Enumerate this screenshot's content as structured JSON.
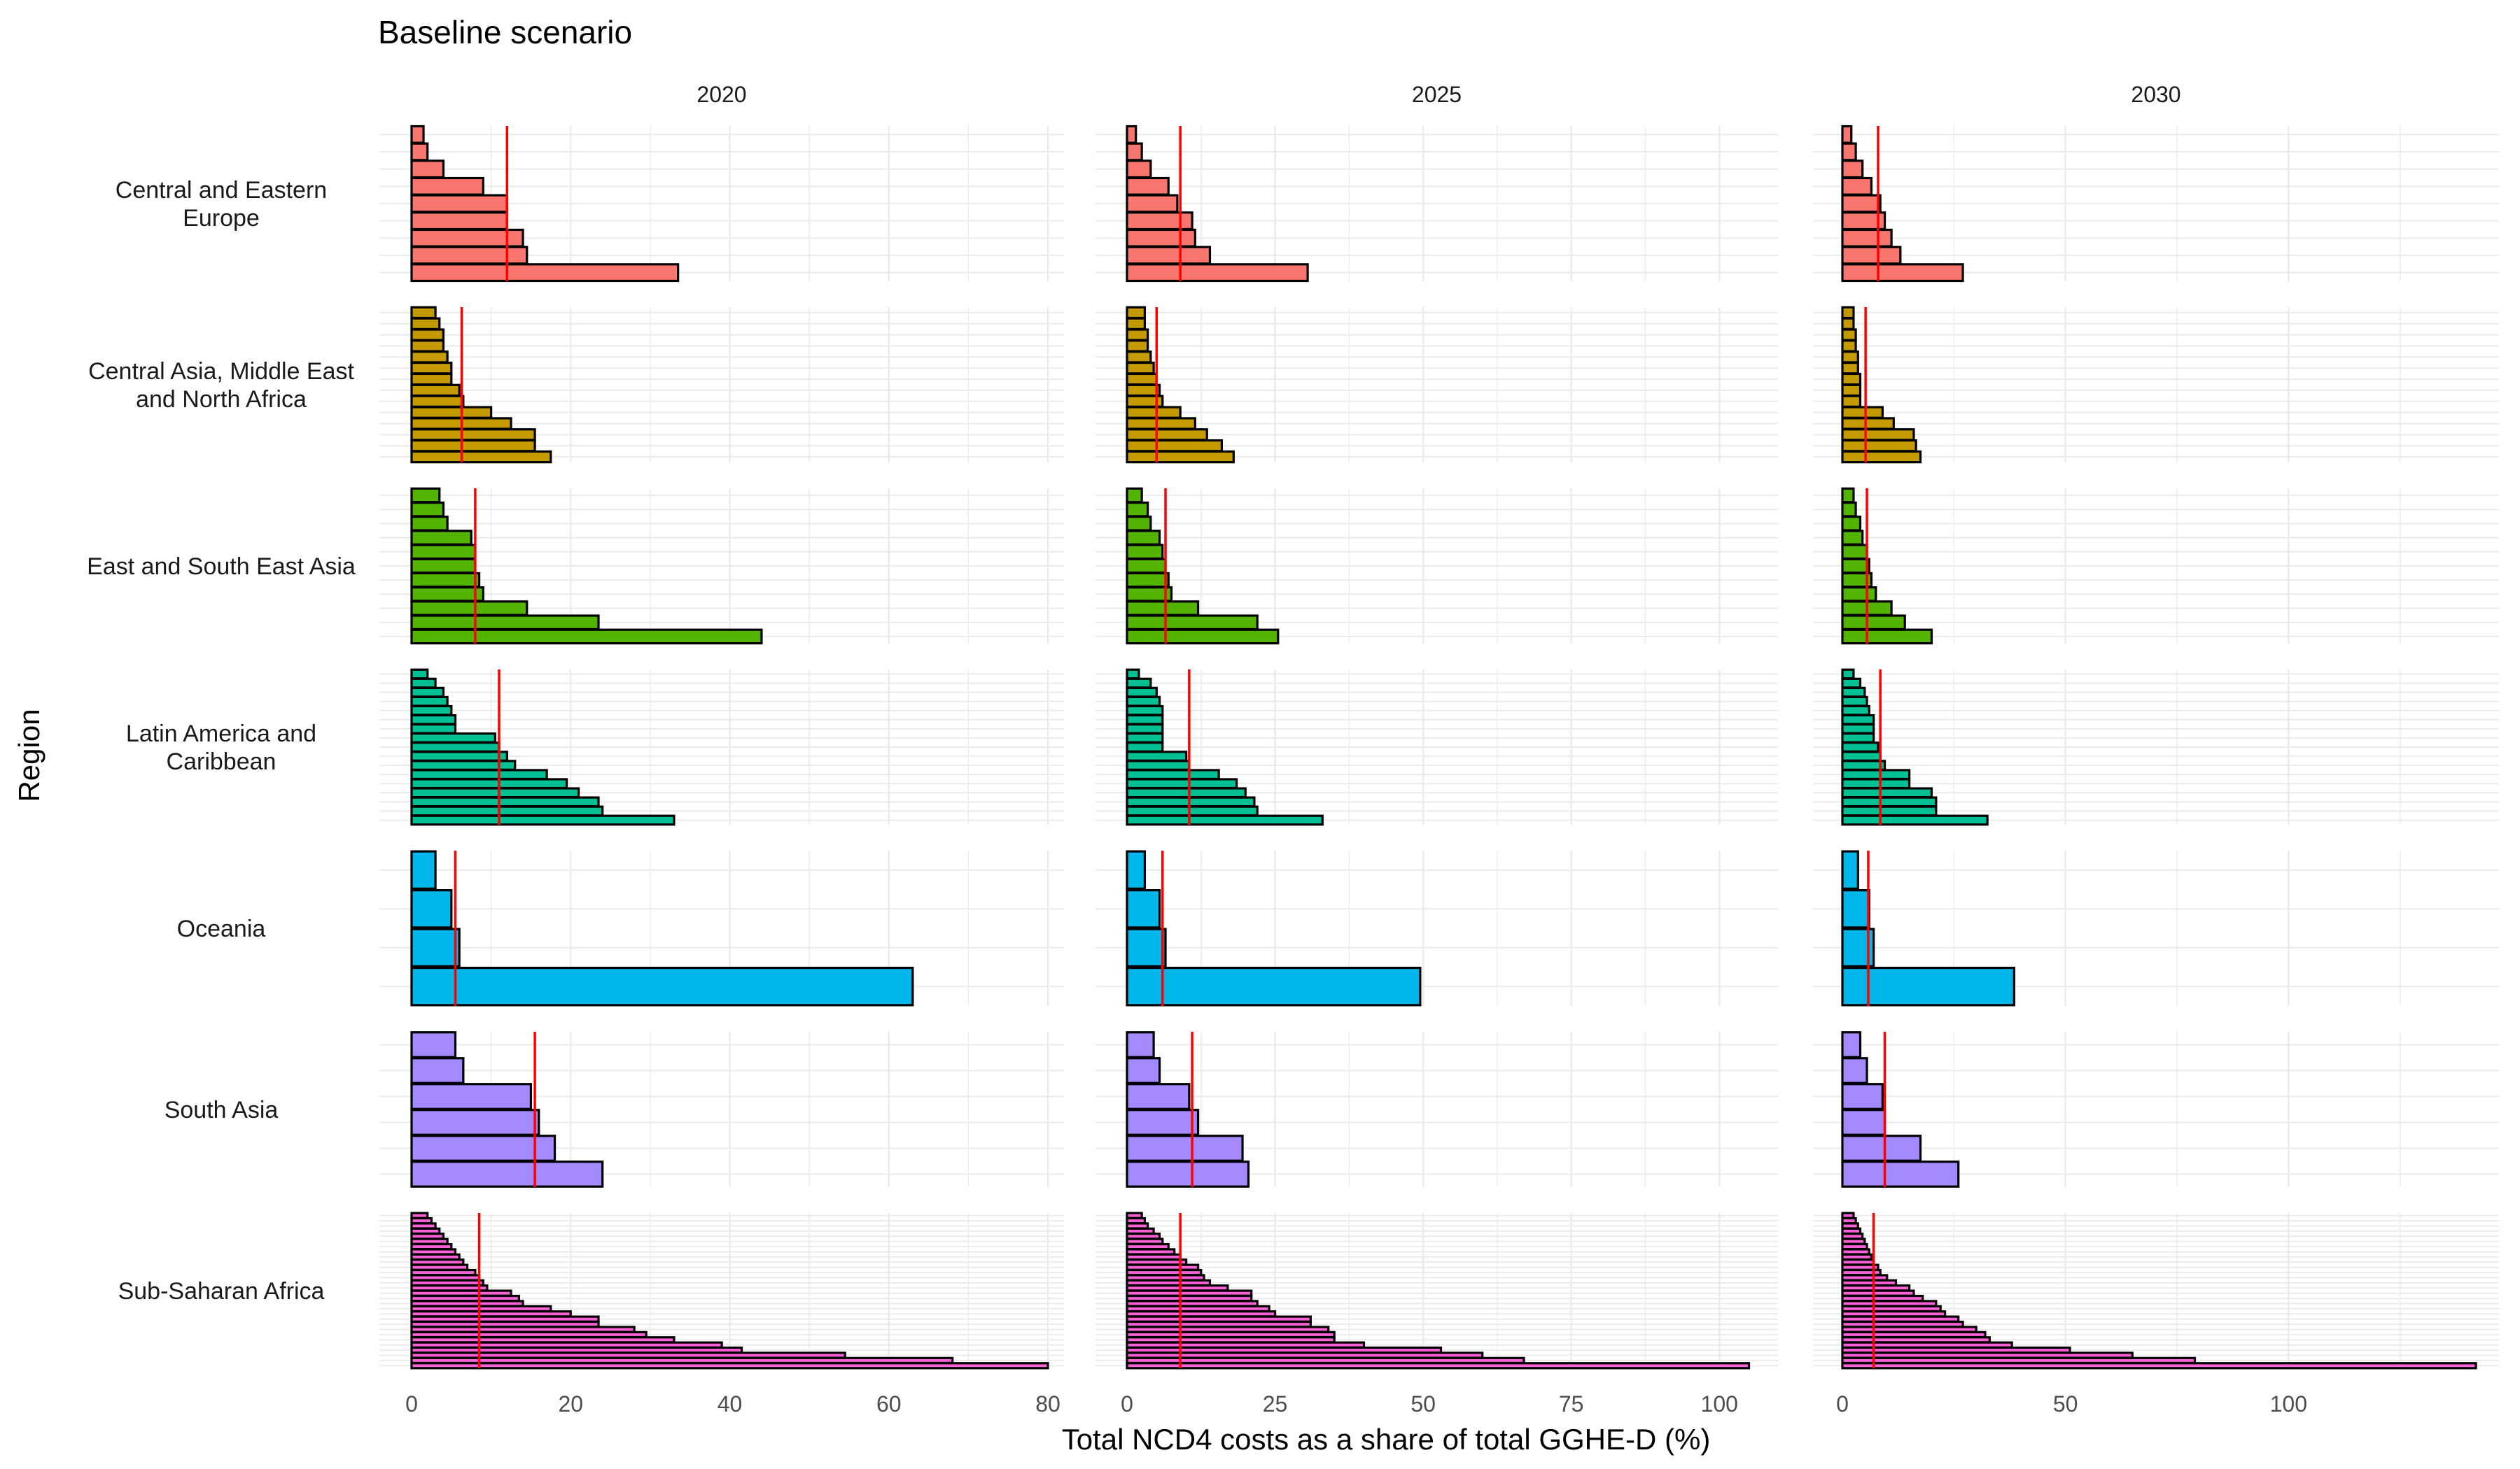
{
  "chart_data": {
    "type": "bar",
    "orientation": "horizontal",
    "title": "Baseline scenario",
    "xlabel": "Total NCD4 costs as a share of total GGHE-D (%)",
    "ylabel": "Region",
    "columns": [
      "2020",
      "2025",
      "2030"
    ],
    "xlims": [
      [
        0,
        80
      ],
      [
        0,
        106
      ],
      [
        0,
        142
      ]
    ],
    "xticks": [
      [
        0,
        20,
        40,
        60,
        80
      ],
      [
        0,
        25,
        50,
        75,
        100
      ],
      [
        0,
        50,
        100
      ]
    ],
    "grid": true,
    "legend": "none",
    "mean_line_color": "#ff0000",
    "bar_outline_color": "#000000",
    "regions": [
      {
        "label": "Central and Eastern\nEurope",
        "color": "#F8766D",
        "panels": [
          {
            "values": [
              33.5,
              14.5,
              14,
              12,
              12,
              9,
              4,
              2,
              1.5
            ],
            "mean": 12
          },
          {
            "values": [
              30.5,
              14,
              11.5,
              11,
              8.5,
              7,
              4,
              2.5,
              1.5
            ],
            "mean": 9
          },
          {
            "values": [
              27,
              13,
              11,
              9.5,
              8.5,
              6.5,
              4.5,
              3,
              2
            ],
            "mean": 8
          }
        ]
      },
      {
        "label": "Central Asia, Middle East\nand North Africa",
        "color": "#C49A00",
        "panels": [
          {
            "values": [
              17.5,
              15.5,
              15.5,
              12.5,
              10,
              6.5,
              6,
              5,
              5,
              4.5,
              4,
              4,
              3.5,
              3
            ],
            "mean": 6.3
          },
          {
            "values": [
              18,
              16,
              13.5,
              11.5,
              9,
              6,
              5.5,
              5,
              4.5,
              4,
              3.5,
              3.5,
              3,
              3
            ],
            "mean": 5
          },
          {
            "values": [
              17.5,
              16.5,
              16,
              11.5,
              9,
              4,
              4,
              4,
              3.5,
              3.5,
              3,
              3,
              2.5,
              2.5
            ],
            "mean": 5.2
          }
        ]
      },
      {
        "label": "East and South East Asia",
        "color": "#53B400",
        "panels": [
          {
            "values": [
              44,
              23.5,
              14.5,
              9,
              8.5,
              8,
              8,
              7.5,
              4.5,
              4,
              3.5
            ],
            "mean": 8
          },
          {
            "values": [
              25.5,
              22,
              12,
              7.5,
              7,
              6.5,
              6,
              5.5,
              4,
              3.5,
              2.5
            ],
            "mean": 6.5
          },
          {
            "values": [
              20,
              14,
              11,
              7.5,
              6.5,
              6,
              5.5,
              4.5,
              4,
              3,
              2.5
            ],
            "mean": 5.5
          }
        ]
      },
      {
        "label": "Latin America and\nCaribbean",
        "color": "#00C094",
        "panels": [
          {
            "values": [
              33,
              24,
              23.5,
              21,
              19.5,
              17,
              13,
              12,
              11,
              10.5,
              5.5,
              5.5,
              5,
              4.5,
              4,
              3,
              2
            ],
            "mean": 11
          },
          {
            "values": [
              33,
              22,
              21.5,
              20,
              18.5,
              15.5,
              10.5,
              10,
              6,
              6,
              6,
              6,
              6,
              5.5,
              5,
              4,
              2
            ],
            "mean": 10.5
          },
          {
            "values": [
              32.5,
              21,
              21,
              20,
              15,
              15,
              9.5,
              8.5,
              8,
              7,
              7,
              7,
              6,
              5.5,
              5,
              4,
              2.5
            ],
            "mean": 8.5
          }
        ]
      },
      {
        "label": "Oceania",
        "color": "#00B6EB",
        "panels": [
          {
            "values": [
              63,
              6,
              5,
              3
            ],
            "mean": 5.5
          },
          {
            "values": [
              49.5,
              6.5,
              5.5,
              3
            ],
            "mean": 6
          },
          {
            "values": [
              38.5,
              7,
              6,
              3.5
            ],
            "mean": 5.8
          }
        ]
      },
      {
        "label": "South Asia",
        "color": "#A58AFF",
        "panels": [
          {
            "values": [
              24,
              18,
              16,
              15,
              6.5,
              5.5
            ],
            "mean": 15.5
          },
          {
            "values": [
              20.5,
              19.5,
              12,
              10.5,
              5.5,
              4.5
            ],
            "mean": 11
          },
          {
            "values": [
              26,
              17.5,
              9.5,
              9,
              5.5,
              4
            ],
            "mean": 9.5
          }
        ]
      },
      {
        "label": "Sub-Saharan Africa",
        "color": "#FB61D7",
        "panels": [
          {
            "values": [
              80,
              68,
              54.5,
              41.5,
              39,
              33,
              29.5,
              28,
              23.5,
              23.5,
              20,
              17.5,
              14,
              13.5,
              12.5,
              9.5,
              9,
              8.5,
              8,
              7,
              6.5,
              6,
              5.5,
              5,
              4.5,
              4,
              3.5,
              3,
              2.5,
              2
            ],
            "mean": 8.5
          },
          {
            "values": [
              105,
              67,
              60,
              53,
              40,
              35,
              35,
              34,
              31,
              31,
              25,
              24,
              22,
              21,
              21,
              17,
              14,
              13,
              12.5,
              12,
              10,
              9,
              8,
              7,
              6,
              5.5,
              4.5,
              3.5,
              3,
              2.5
            ],
            "mean": 9
          },
          {
            "values": [
              142,
              79,
              65,
              51,
              38,
              33,
              32,
              30,
              27,
              26,
              23,
              22,
              21,
              18,
              16,
              15,
              12,
              10,
              8.5,
              8,
              7,
              6.5,
              6,
              5.5,
              5,
              4.5,
              4,
              3.5,
              3,
              2.5
            ],
            "mean": 7
          }
        ]
      }
    ]
  }
}
